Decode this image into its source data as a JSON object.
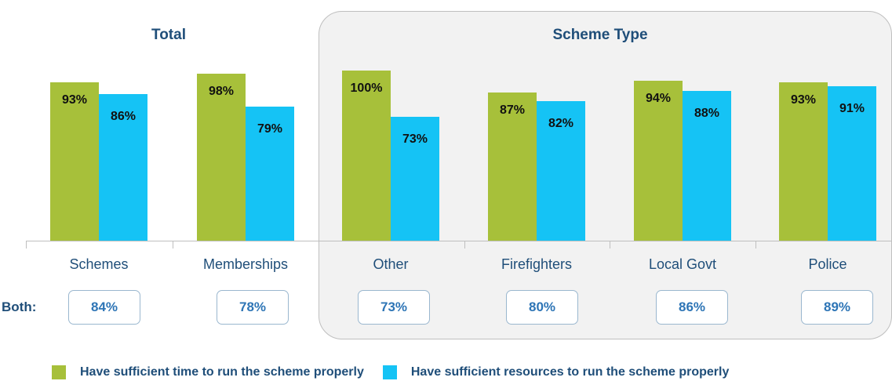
{
  "chart_data": {
    "type": "bar",
    "groups": [
      {
        "title": "Total",
        "categories": [
          "Schemes",
          "Memberships"
        ]
      },
      {
        "title": "Scheme Type",
        "categories": [
          "Other",
          "Firefighters",
          "Local Govt",
          "Police"
        ]
      }
    ],
    "categories": [
      "Schemes",
      "Memberships",
      "Other",
      "Firefighters",
      "Local Govt",
      "Police"
    ],
    "series": [
      {
        "name": "Have sufficient time to run the scheme properly",
        "color": "#a7c03a",
        "values": [
          93,
          98,
          100,
          87,
          94,
          93
        ],
        "labels": [
          "93%",
          "98%",
          "100%",
          "87%",
          "94%",
          "93%"
        ]
      },
      {
        "name": "Have sufficient resources to run the scheme properly",
        "color": "#15c3f5",
        "values": [
          86,
          79,
          73,
          82,
          88,
          91
        ],
        "labels": [
          "86%",
          "79%",
          "73%",
          "82%",
          "88%",
          "91%"
        ]
      }
    ],
    "both": {
      "label": "Both:",
      "values": [
        84,
        78,
        73,
        80,
        86,
        89
      ],
      "labels": [
        "84%",
        "78%",
        "73%",
        "80%",
        "86%",
        "89%"
      ]
    },
    "ylim": [
      0,
      100
    ],
    "legend_position": "bottom",
    "grid": false
  }
}
